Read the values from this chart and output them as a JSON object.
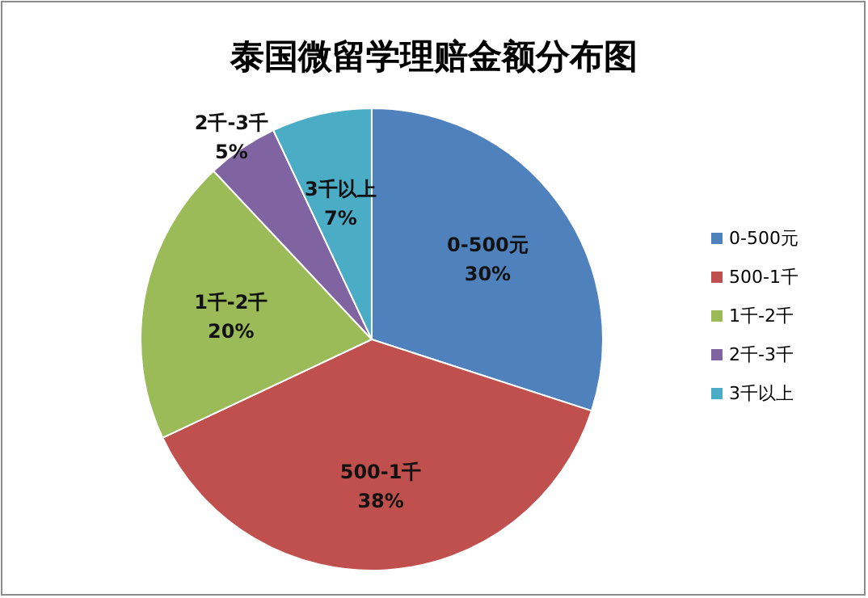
{
  "chart_data": {
    "type": "pie",
    "title": "泰国微留学理赔金额分布图",
    "categories": [
      "0-500元",
      "500-1千",
      "1千-2千",
      "2千-3千",
      "3千以上"
    ],
    "values": [
      30,
      38,
      20,
      5,
      7
    ],
    "colors": [
      "#4f81bd",
      "#c0504d",
      "#9bbb59",
      "#8064a2",
      "#4bacc6"
    ],
    "value_labels": [
      "30%",
      "38%",
      "20%",
      "5%",
      "7%"
    ],
    "legend": "right"
  }
}
